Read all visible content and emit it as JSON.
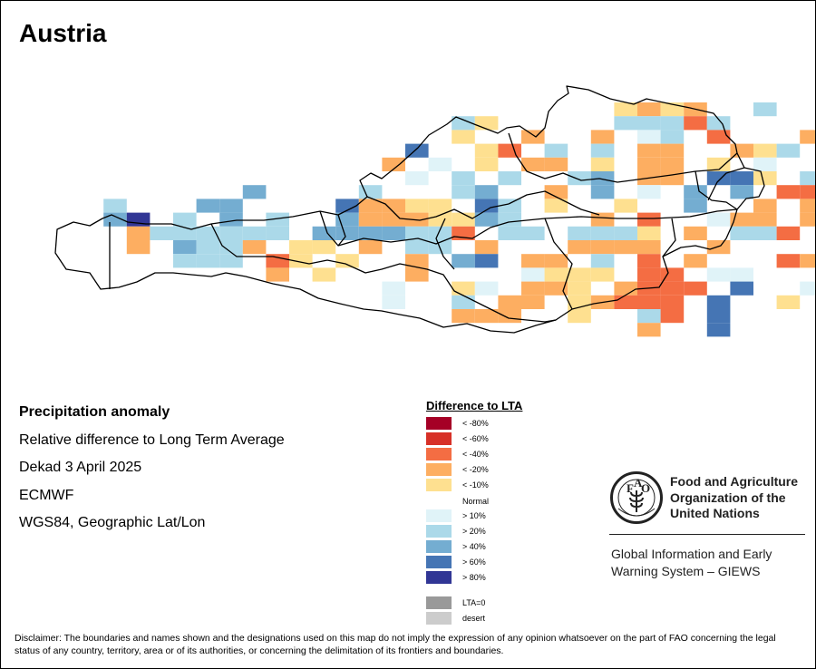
{
  "map": {
    "title": "Austria",
    "info_lines": [
      "Precipitation anomaly",
      "Relative difference to Long Term Average",
      "Dekad 3 April 2025",
      "ECMWF",
      "WGS84, Geographic Lat/Lon"
    ],
    "legend": {
      "title": "Difference to LTA",
      "items": [
        {
          "label": "< -80%",
          "color": "#a50026"
        },
        {
          "label": "< -60%",
          "color": "#d73027"
        },
        {
          "label": "< -40%",
          "color": "#f46d43"
        },
        {
          "label": "< -20%",
          "color": "#fdae61"
        },
        {
          "label": "< -10%",
          "color": "#fee090"
        },
        {
          "label": "Normal",
          "color": "#ffffff"
        },
        {
          "label": "> 10%",
          "color": "#e0f3f8"
        },
        {
          "label": "> 20%",
          "color": "#abd9e9"
        },
        {
          "label": "> 40%",
          "color": "#74add1"
        },
        {
          "label": "> 60%",
          "color": "#4575b4"
        },
        {
          "label": "> 80%",
          "color": "#313695"
        },
        {
          "label": "LTA=0",
          "color": "#999999"
        },
        {
          "label": "desert",
          "color": "#cccccc"
        }
      ]
    },
    "grid": {
      "code_key": {
        "4": "< -40%",
        "3": "< -20%",
        "2": "< -10%",
        "0": "Normal",
        "a": "> 10%",
        "b": "> 20%",
        "c": "> 40%",
        "d": "> 60%",
        "e": "> 80%"
      },
      "rows": [
        "                        2323  b        ",
        "                 b2     bbb4b     bbc2 ",
        "                 2  3  3 ab 4   3 bbd2 ",
        "               d  24 b b 33  32b ac0ee ",
        "              3 a 2 33 2 33 2 a  3ee  ",
        "               a b b0 bc 33 dd2 b  3  ",
        "        c    b   bc  3 c a c c 443   ",
        "  b   cc    d3322 db 2  2  c  3 3 4  ",
        "  ce b c b  c33322cb   3 4  a33 344  ",
        "   3bbbbbb ccccbb4 bb bbb2 3 bb4 3   ",
        "   3 cbb3 22 3 bb 3   3333  3        ",
        "     bbb 42 2  3 cd 33 b 4 3 0 43    ",
        "         3 2   3    a222 44 aa 0 3   ",
        "              a  2a 332 3444 d  a    ",
        "              a  b 33 23444 d  2    ",
        "                 333  2  b4 d        ",
        "                         3  d      "
      ]
    },
    "logo": {
      "org_name": "Food and Agriculture Organization of the United Nations",
      "acronym": "FAO",
      "motto": "FIAT PANIS"
    },
    "giews": "Global Information and Early Warning System – GIEWS",
    "disclaimer": "Disclaimer: The boundaries and names shown and the designations used on this map do not imply the expression of any opinion whatsoever on the part of FAO concerning the legal status of any country, territory, area or of its authorities, or concerning the delimitation of its frontiers and boundaries."
  }
}
